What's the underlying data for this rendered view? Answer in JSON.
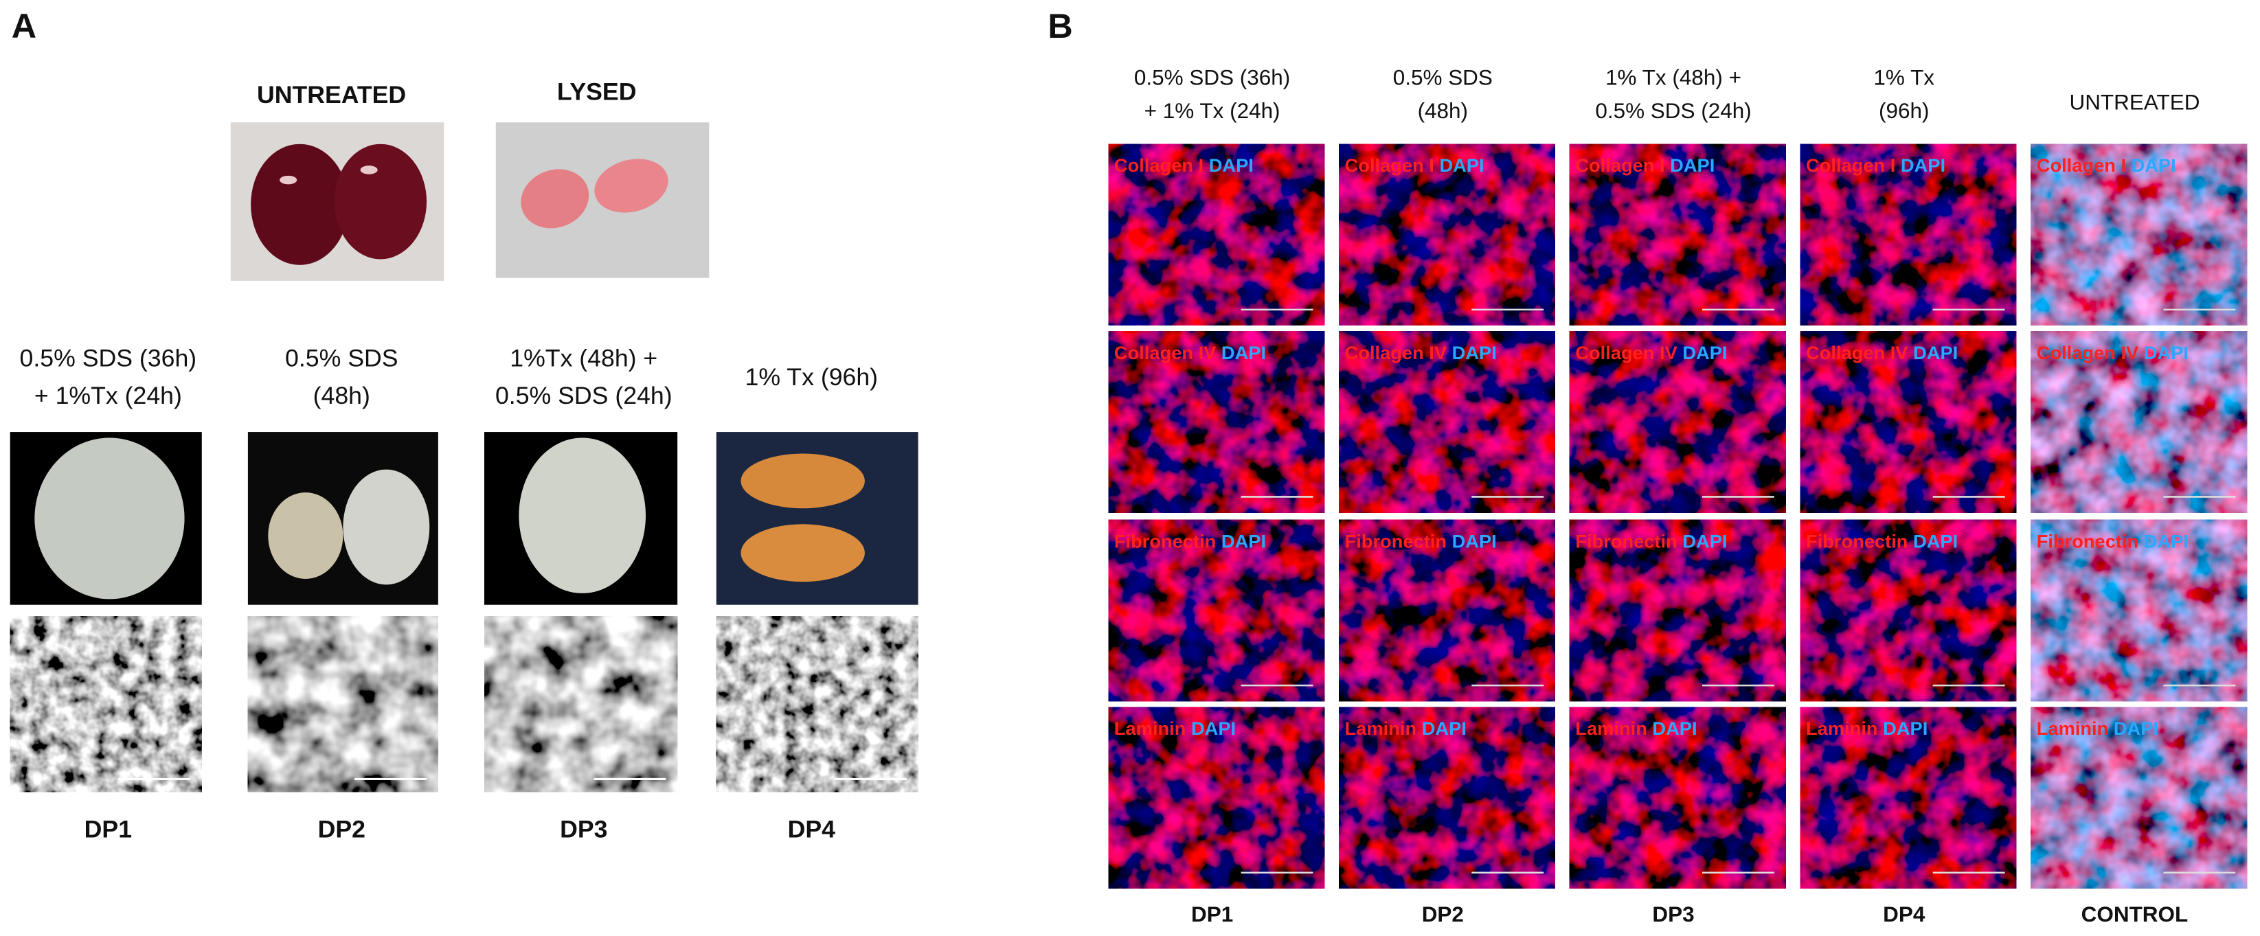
{
  "panel_a": {
    "label": "A",
    "untreated": "UNTREATED",
    "lysed": "LYSED",
    "conditions": [
      [
        "0.5% SDS (36h)",
        "+ 1%Tx (24h)"
      ],
      [
        "0.5% SDS",
        "(48h)"
      ],
      [
        "1%Tx (48h) +",
        "0.5% SDS (24h)"
      ],
      [
        "1% Tx (96h)"
      ]
    ],
    "protocols": [
      "DP1",
      "DP2",
      "DP3",
      "DP4"
    ]
  },
  "panel_b": {
    "label": "B",
    "conditions": [
      [
        "0.5% SDS (36h)",
        "+ 1% Tx (24h)"
      ],
      [
        "0.5% SDS",
        "(48h)"
      ],
      [
        "1% Tx (48h) +",
        "0.5% SDS (24h)"
      ],
      [
        "1% Tx",
        "(96h)"
      ],
      [
        "UNTREATED"
      ]
    ],
    "stains": [
      "Collagen I",
      "Collagen IV",
      "Fibronectin",
      "Laminin"
    ],
    "counterstain": "DAPI",
    "groups": [
      "DP1",
      "DP2",
      "DP3",
      "DP4",
      "CONTROL"
    ]
  }
}
